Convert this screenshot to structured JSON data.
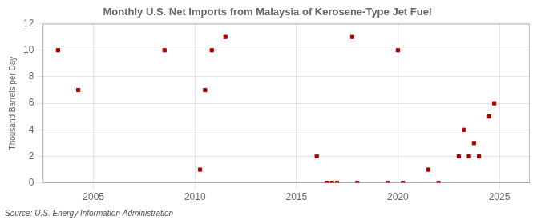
{
  "chart_data": {
    "type": "scatter",
    "title": "Monthly U.S. Net Imports from Malaysia of Kerosene-Type Jet Fuel",
    "ylabel": "Thousand Barrels per Day",
    "annotations": [
      "Source: U.S. Energy Information Administration"
    ],
    "x": [
      2003.25,
      2004.25,
      2008.5,
      2010.25,
      2010.5,
      2010.83,
      2011.5,
      2016.0,
      2016.5,
      2016.75,
      2017.0,
      2017.75,
      2018.0,
      2019.5,
      2020.0,
      2020.25,
      2021.5,
      2022.0,
      2023.0,
      2023.25,
      2023.5,
      2023.75,
      2024.0,
      2024.5,
      2024.75
    ],
    "values": [
      10,
      7,
      10,
      1,
      7,
      10,
      11,
      2,
      0,
      0,
      0,
      11,
      0,
      0,
      10,
      0,
      1,
      0,
      2,
      4,
      2,
      3,
      2,
      5,
      6
    ],
    "color": "#aa0000",
    "marker": "square",
    "xlim": [
      2002.5,
      2026.5
    ],
    "xticks": [
      2005,
      2010,
      2015,
      2020,
      2025
    ],
    "ylim": [
      0,
      12
    ],
    "yticks": [
      0,
      2,
      4,
      6,
      8,
      10,
      12
    ],
    "grid": true
  }
}
